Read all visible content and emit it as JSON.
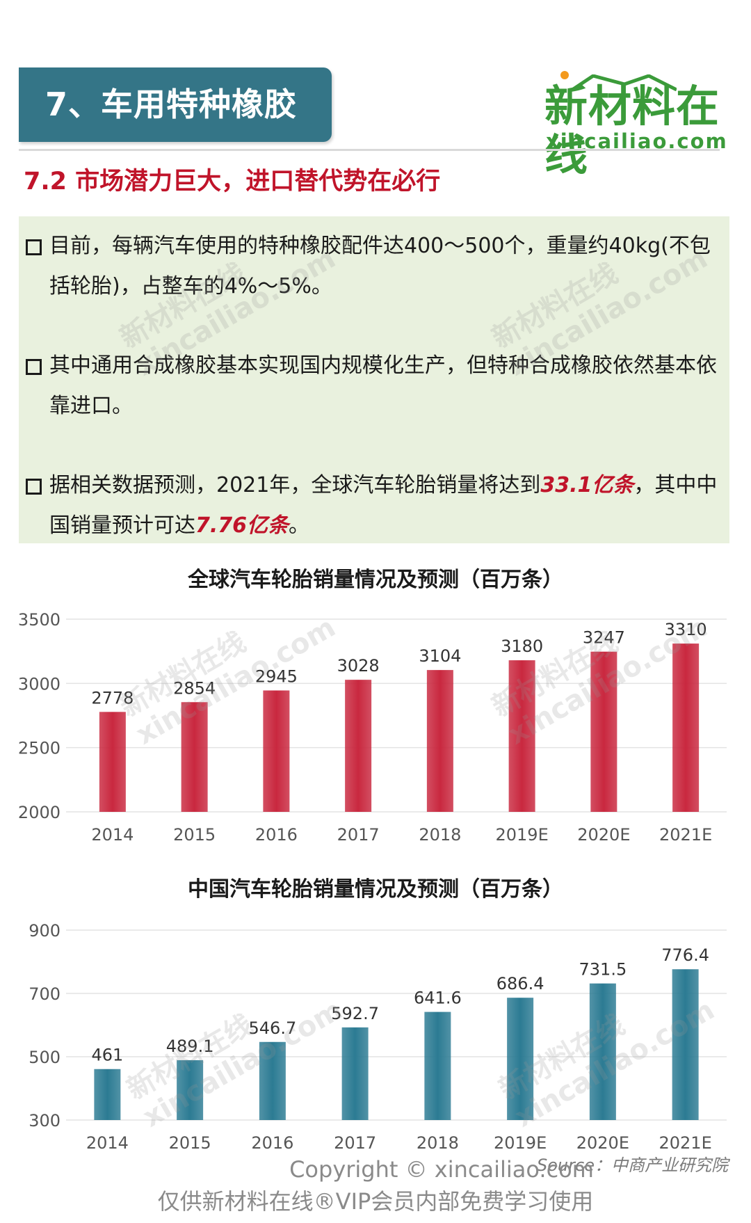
{
  "header": {
    "title": "7、车用特种橡胶",
    "logo_cn": "新材料在线",
    "logo_en": "xincailiao.com"
  },
  "subtitle": "7.2 市场潜力巨大，进口替代势在必行",
  "bullets": [
    {
      "text": "目前，每辆汽车使用的特种橡胶配件达400～500个，重量约40kg(不包括轮胎)，占整车的4%～5%。"
    },
    {
      "text": "其中通用合成橡胶基本实现国内规模化生产，但特种合成橡胶依然基本依靠进口。"
    },
    {
      "prefix": "据相关数据预测，2021年，全球汽车轮胎销量将达到",
      "hl1": "33.1亿条",
      "middle": "，其中中国销量预计可达",
      "hl2": "7.76亿条",
      "suffix": "。"
    }
  ],
  "chart_data": [
    {
      "type": "bar",
      "title": "全球汽车轮胎销量情况及预测（百万条）",
      "categories": [
        "2014",
        "2015",
        "2016",
        "2017",
        "2018",
        "2019E",
        "2020E",
        "2021E"
      ],
      "values": [
        2778,
        2854,
        2945,
        3028,
        3104,
        3180,
        3247,
        3310
      ],
      "value_labels": [
        "2778",
        "2854",
        "2945",
        "3028",
        "3104",
        "3180",
        "3247",
        "3310"
      ],
      "ylim": [
        2000,
        3500
      ],
      "yticks": [
        2000,
        2500,
        3000,
        3500
      ],
      "grid": true,
      "color": "#c9283f"
    },
    {
      "type": "bar",
      "title": "中国汽车轮胎销量情况及预测（百万条）",
      "categories": [
        "2014",
        "2015",
        "2016",
        "2017",
        "2018",
        "2019E",
        "2020E",
        "2021E"
      ],
      "values": [
        461,
        489.1,
        546.7,
        592.7,
        641.6,
        686.4,
        731.5,
        776.4
      ],
      "value_labels": [
        "461",
        "489.1",
        "546.7",
        "592.7",
        "641.6",
        "686.4",
        "731.5",
        "776.4"
      ],
      "ylim": [
        300,
        900
      ],
      "yticks": [
        300,
        500,
        700,
        900
      ],
      "grid": true,
      "color": "#2c7b93"
    }
  ],
  "footer": {
    "copyright": "Copyright © xincailiao.com",
    "notice": "仅供新材料在线®VIP会员内部免费学习使用",
    "source": "Source：中商产业研究院"
  },
  "watermark": {
    "cn": "新材料在线",
    "en": "xincailiao.com"
  }
}
